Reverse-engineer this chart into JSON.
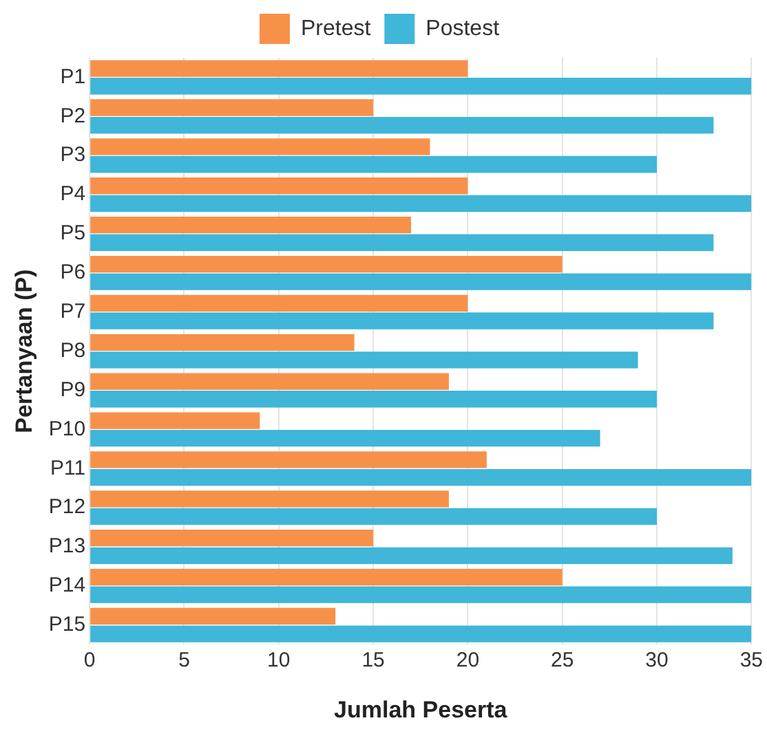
{
  "chart_data": {
    "type": "bar",
    "orientation": "horizontal",
    "xlabel": "Jumlah Peserta",
    "ylabel": "Pertanyaan (P)",
    "categories": [
      "P1",
      "P2",
      "P3",
      "P4",
      "P5",
      "P6",
      "P7",
      "P8",
      "P9",
      "P10",
      "P11",
      "P12",
      "P13",
      "P14",
      "P15"
    ],
    "series": [
      {
        "name": "Pretest",
        "color": "#f7914a",
        "values": [
          20,
          15,
          18,
          20,
          17,
          25,
          20,
          14,
          19,
          9,
          21,
          19,
          15,
          25,
          13
        ]
      },
      {
        "name": "Postest",
        "color": "#40b6d8",
        "values": [
          35,
          33,
          30,
          35,
          33,
          35,
          33,
          29,
          30,
          27,
          35,
          30,
          34,
          35,
          35
        ]
      }
    ],
    "xlim": [
      0,
      35
    ],
    "xticks": [
      0,
      5,
      10,
      15,
      20,
      25,
      30,
      35
    ],
    "grid": "x",
    "legend": "top"
  }
}
